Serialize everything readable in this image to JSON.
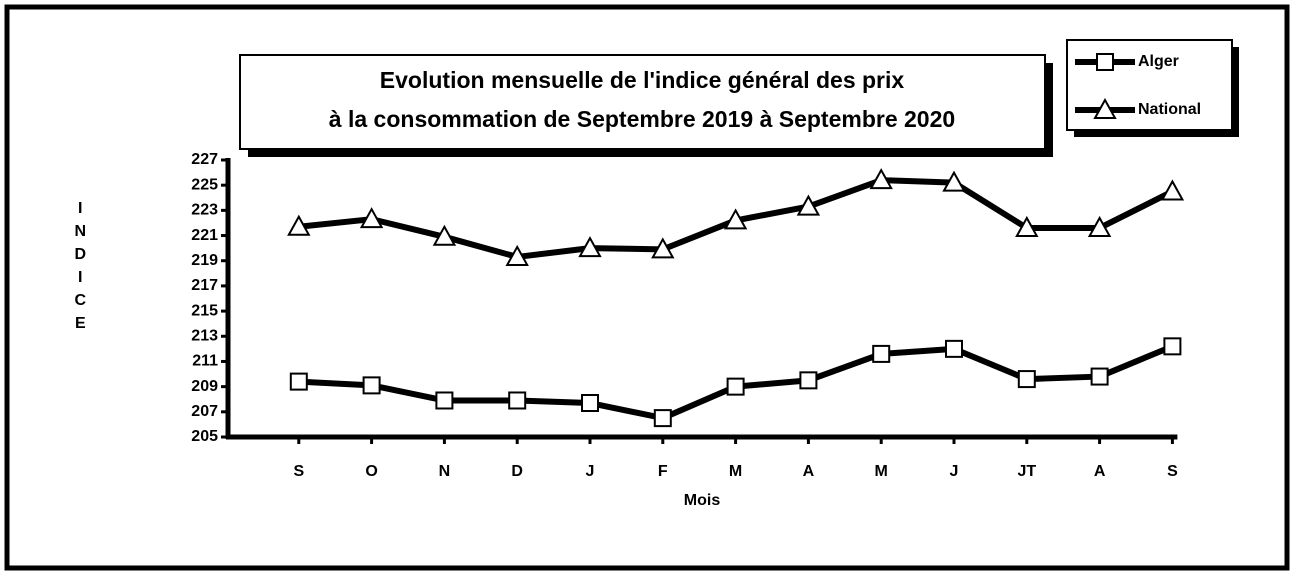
{
  "chart_data": {
    "type": "line",
    "title": [
      "Evolution mensuelle de l'indice général des  prix",
      "à la consommation de Septembre 2019 à Septembre 2020"
    ],
    "xlabel": "Mois",
    "ylabel": "INDICE",
    "categories": [
      "S",
      "O",
      "N",
      "D",
      "J",
      "F",
      "M",
      "A",
      "M",
      "J",
      "JT",
      "A",
      "S"
    ],
    "series": [
      {
        "name": "Alger",
        "color": "#000000",
        "marker": "square",
        "values": [
          209.4,
          209.1,
          207.9,
          207.9,
          207.7,
          206.5,
          209.0,
          209.5,
          211.6,
          212.0,
          209.6,
          209.8,
          212.2
        ]
      },
      {
        "name": "National",
        "color": "#000000",
        "marker": "triangle",
        "values": [
          221.7,
          222.3,
          220.9,
          219.3,
          220.0,
          219.9,
          222.2,
          223.3,
          225.4,
          225.2,
          221.6,
          221.6,
          224.5
        ]
      }
    ],
    "ylim": [
      205,
      227
    ],
    "yticks": [
      205,
      207,
      209,
      211,
      213,
      215,
      217,
      219,
      221,
      223,
      225,
      227
    ],
    "legend": "top right",
    "grid": false
  }
}
